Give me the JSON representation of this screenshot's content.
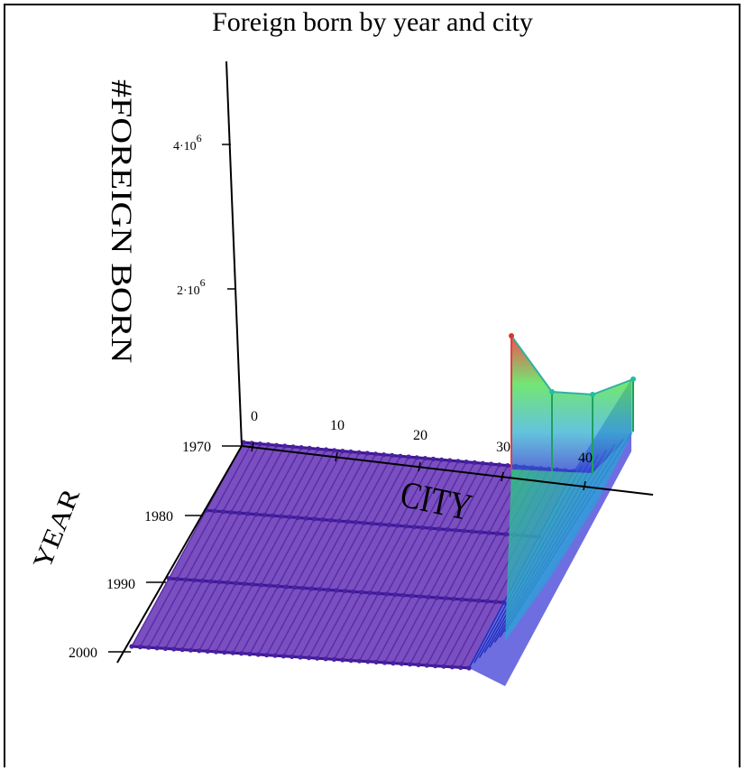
{
  "chart_data": {
    "type": "surface",
    "title": "Foreign born by year and city",
    "xlabel": "CITY",
    "ylabel": "YEAR",
    "zlabel": "#FOREIGN BORN",
    "x_ticks": [
      "0",
      "10",
      "20",
      "30",
      "40"
    ],
    "y_ticks": [
      "1970",
      "1980",
      "1990",
      "2000"
    ],
    "z_tick_labels": [
      {
        "base": "2·10",
        "exp": "6",
        "value": 2000000
      },
      {
        "base": "4·10",
        "exp": "6",
        "value": 4000000
      }
    ],
    "x_range": [
      0,
      49
    ],
    "years": [
      1970,
      1980,
      1990,
      2000
    ],
    "zlim": [
      0,
      5000000
    ],
    "colorscale": [
      "#6a2bb3",
      "#2a3fd0",
      "#20d0c0",
      "#40e040",
      "#f03030"
    ],
    "series": [
      {
        "year": 1970,
        "values_by_city": "approx 0 for cities 0-42; city 43: 1400000; city 45: 850000; city 47: 800000; city 49: 1050000"
      },
      {
        "year": 1980,
        "values_by_city": "approx 0 for cities 0-42; cities 43-49: ~150000"
      },
      {
        "year": 1990,
        "values_by_city": "approx 0 for cities 0-42; cities 43-49: ~150000"
      },
      {
        "year": 2000,
        "values_by_city": "approx 0 for cities 0-42; cities 43-49: ~150000"
      }
    ],
    "peak_points": [
      {
        "city": 43,
        "year": 1970,
        "value": 1400000
      },
      {
        "city": 45,
        "year": 1970,
        "value": 850000
      },
      {
        "city": 47,
        "year": 1970,
        "value": 800000
      },
      {
        "city": 49,
        "year": 1970,
        "value": 1050000
      }
    ]
  }
}
